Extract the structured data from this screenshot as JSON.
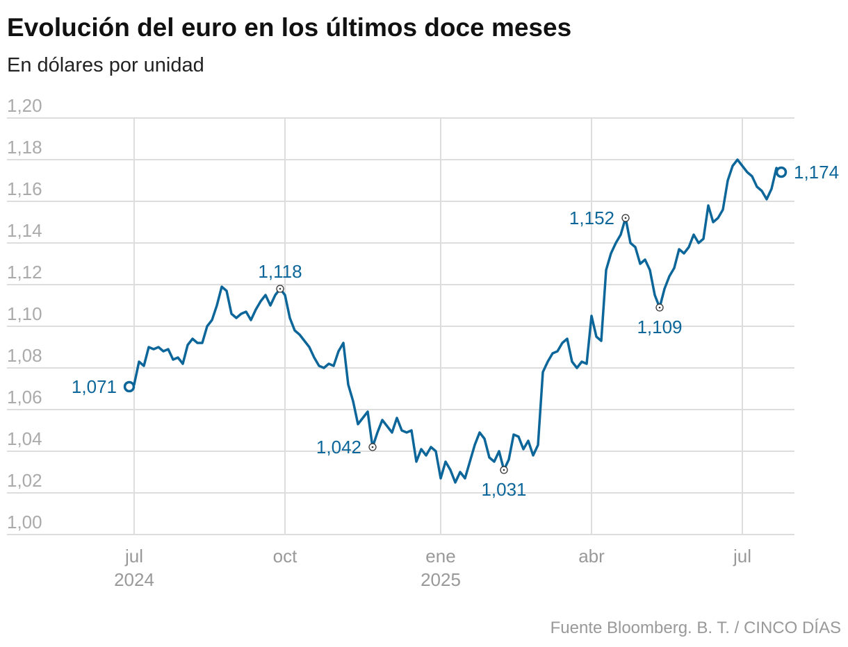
{
  "chart_data": {
    "type": "line",
    "title": "Evolución del euro en los últimos doce meses",
    "subtitle": "En dólares por unidad",
    "source": "Fuente Bloomberg. B. T. / CINCO DÍAS",
    "color": "#0c6699",
    "categories": [
      null,
      "jul\n2024",
      null,
      null,
      null,
      null,
      null,
      null,
      null,
      null,
      null,
      null,
      null,
      null,
      null,
      null,
      null,
      null,
      null,
      null,
      null,
      null,
      null,
      null,
      null,
      null,
      null,
      null,
      null,
      null,
      null,
      null,
      "oct",
      null,
      null,
      null,
      null,
      null,
      null,
      null,
      null,
      null,
      null,
      null,
      null,
      null,
      null,
      null,
      null,
      null,
      null,
      null,
      null,
      null,
      null,
      null,
      null,
      null,
      null,
      null,
      null,
      null,
      null,
      null,
      "ene\n2025",
      null,
      null,
      null,
      null,
      null,
      null,
      null,
      null,
      null,
      null,
      null,
      null,
      null,
      null,
      null,
      null,
      null,
      null,
      null,
      null,
      null,
      null,
      null,
      null,
      null,
      null,
      null,
      null,
      null,
      null,
      "abr",
      null,
      null,
      null,
      null,
      null,
      null,
      null,
      null,
      null,
      null,
      null,
      null,
      null,
      null,
      null,
      null,
      null,
      null,
      null,
      null,
      null,
      null,
      null,
      null,
      null,
      null,
      null,
      null,
      null,
      null,
      "jul",
      null,
      null,
      null,
      null,
      null,
      null,
      null,
      null
    ],
    "values": [
      1.071,
      1.072,
      1.083,
      1.081,
      1.09,
      1.089,
      1.09,
      1.088,
      1.089,
      1.084,
      1.085,
      1.082,
      1.091,
      1.094,
      1.092,
      1.092,
      1.1,
      1.103,
      1.11,
      1.119,
      1.117,
      1.106,
      1.104,
      1.106,
      1.107,
      1.103,
      1.108,
      1.112,
      1.115,
      1.11,
      1.115,
      1.118,
      1.115,
      1.104,
      1.098,
      1.096,
      1.093,
      1.09,
      1.085,
      1.081,
      1.08,
      1.082,
      1.081,
      1.088,
      1.092,
      1.072,
      1.064,
      1.053,
      1.056,
      1.059,
      1.042,
      1.049,
      1.055,
      1.052,
      1.049,
      1.056,
      1.05,
      1.049,
      1.05,
      1.035,
      1.041,
      1.038,
      1.042,
      1.04,
      1.027,
      1.035,
      1.031,
      1.025,
      1.03,
      1.027,
      1.035,
      1.043,
      1.049,
      1.046,
      1.037,
      1.035,
      1.04,
      1.031,
      1.036,
      1.048,
      1.047,
      1.041,
      1.045,
      1.038,
      1.043,
      1.078,
      1.083,
      1.087,
      1.088,
      1.092,
      1.094,
      1.083,
      1.08,
      1.083,
      1.082,
      1.105,
      1.095,
      1.093,
      1.127,
      1.135,
      1.14,
      1.144,
      1.152,
      1.14,
      1.138,
      1.13,
      1.132,
      1.127,
      1.115,
      1.109,
      1.118,
      1.124,
      1.128,
      1.137,
      1.135,
      1.138,
      1.144,
      1.14,
      1.142,
      1.158,
      1.15,
      1.152,
      1.156,
      1.17,
      1.177,
      1.18,
      1.177,
      1.174,
      1.172,
      1.167,
      1.165,
      1.161,
      1.166,
      1.176,
      1.174
    ],
    "value_labels": [
      "1,071",
      null,
      null,
      null,
      null,
      null,
      null,
      null,
      null,
      null,
      null,
      null,
      null,
      null,
      null,
      null,
      null,
      null,
      null,
      null,
      null,
      null,
      null,
      null,
      null,
      null,
      null,
      null,
      null,
      null,
      null,
      "1,118",
      null,
      null,
      null,
      null,
      null,
      null,
      null,
      null,
      null,
      null,
      null,
      null,
      null,
      null,
      null,
      null,
      null,
      null,
      "1,042",
      null,
      null,
      null,
      null,
      null,
      null,
      null,
      null,
      null,
      null,
      null,
      null,
      null,
      null,
      null,
      null,
      null,
      null,
      null,
      null,
      null,
      null,
      null,
      null,
      null,
      null,
      "1,031",
      null,
      null,
      null,
      null,
      null,
      null,
      null,
      null,
      null,
      null,
      null,
      null,
      null,
      null,
      null,
      null,
      null,
      null,
      null,
      null,
      null,
      null,
      null,
      null,
      "1,152",
      null,
      null,
      null,
      null,
      null,
      null,
      "1,109",
      null,
      null,
      null,
      null,
      null,
      null,
      null,
      null,
      null,
      null,
      null,
      null,
      null,
      null,
      null,
      null,
      null,
      null,
      null,
      null,
      null,
      null,
      null,
      null,
      "1,174"
    ],
    "ylim": [
      1.0,
      1.2
    ],
    "yticks": [
      {
        "value": 1.0,
        "label": "1,00"
      },
      {
        "value": 1.02,
        "label": "1,02"
      },
      {
        "value": 1.04,
        "label": "1,04"
      },
      {
        "value": 1.06,
        "label": "1,06"
      },
      {
        "value": 1.08,
        "label": "1,08"
      },
      {
        "value": 1.1,
        "label": "1,10"
      },
      {
        "value": 1.12,
        "label": "1,12"
      },
      {
        "value": 1.14,
        "label": "1,14"
      },
      {
        "value": 1.16,
        "label": "1,16"
      },
      {
        "value": 1.18,
        "label": "1,18"
      },
      {
        "value": 1.2,
        "label": "1,20"
      }
    ],
    "grid": true
  }
}
